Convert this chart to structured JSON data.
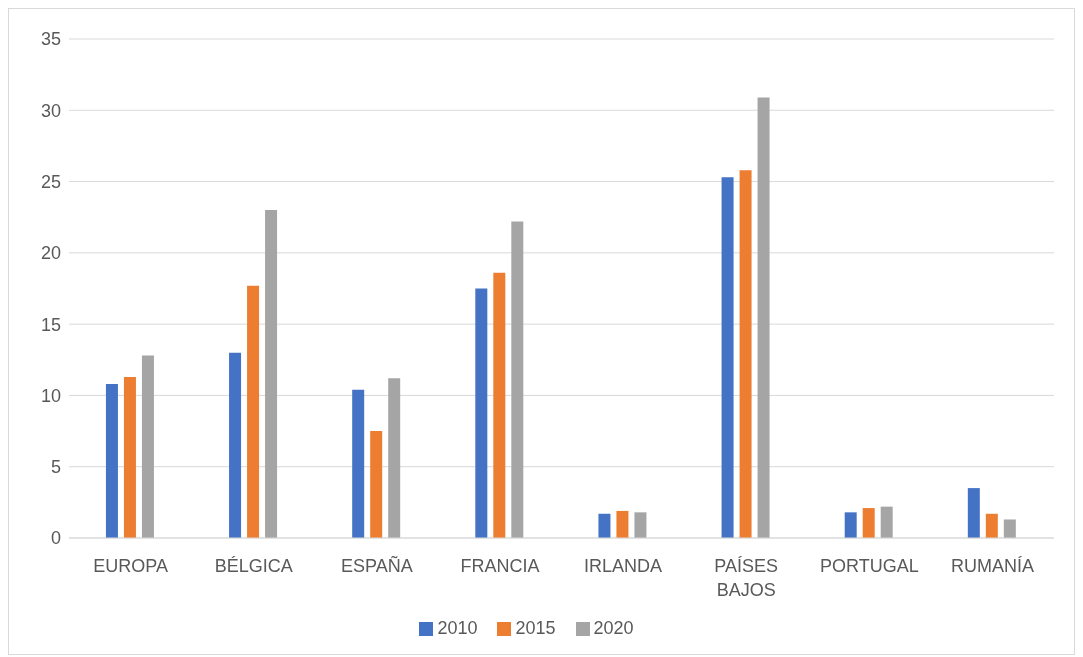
{
  "chart_data": {
    "type": "bar",
    "categories": [
      "EUROPA",
      "BÉLGICA",
      "ESPAÑA",
      "FRANCIA",
      "IRLANDA",
      "PAÍSES BAJOS",
      "PORTUGAL",
      "RUMANÍA"
    ],
    "series": [
      {
        "name": "2010",
        "color": "#4472c4",
        "values": [
          10.8,
          13.0,
          10.4,
          17.5,
          1.7,
          25.3,
          1.8,
          3.5
        ]
      },
      {
        "name": "2015",
        "color": "#ed7d31",
        "values": [
          11.3,
          17.7,
          7.5,
          18.6,
          1.9,
          25.8,
          2.1,
          1.7
        ]
      },
      {
        "name": "2020",
        "color": "#a5a5a5",
        "values": [
          12.8,
          23.0,
          11.2,
          22.2,
          1.8,
          30.9,
          2.2,
          1.3
        ]
      }
    ],
    "ylim": [
      0,
      35
    ],
    "yticks": [
      0,
      5,
      10,
      15,
      20,
      25,
      30,
      35
    ],
    "grid": "y",
    "legend": "bottom"
  }
}
